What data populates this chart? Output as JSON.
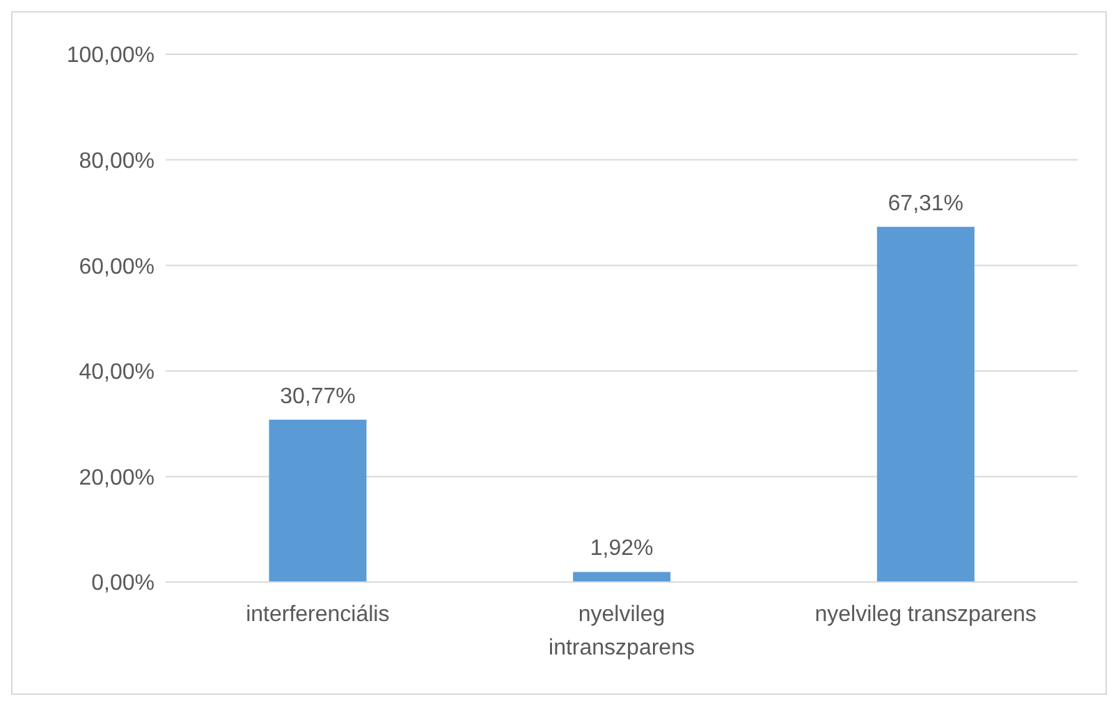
{
  "chart_data": {
    "type": "bar",
    "categories": [
      "interferenciális",
      "nyelvileg intranszparens",
      "nyelvileg transzparens"
    ],
    "values": [
      30.77,
      1.92,
      67.31
    ],
    "value_labels": [
      "30,77%",
      "1,92%",
      "67,31%"
    ],
    "color": "#5b9bd5",
    "ylim": [
      0,
      100
    ],
    "yticks": [
      {
        "value": 0,
        "label": "0,00%"
      },
      {
        "value": 20,
        "label": "20,00%"
      },
      {
        "value": 40,
        "label": "40,00%"
      },
      {
        "value": 60,
        "label": "60,00%"
      },
      {
        "value": 80,
        "label": "80,00%"
      },
      {
        "value": 100,
        "label": "100,00%"
      }
    ],
    "grid": "y",
    "legend": false
  }
}
